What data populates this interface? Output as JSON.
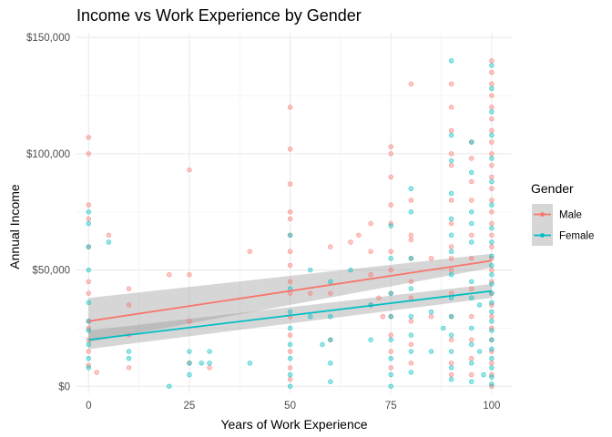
{
  "chart_data": {
    "type": "scatter",
    "title": "Income vs Work Experience by Gender",
    "xlabel": "Years of Work Experience",
    "ylabel": "Annual Income",
    "xlim": [
      -3,
      105
    ],
    "ylim": [
      -3000,
      152000
    ],
    "x_ticks": [
      0,
      25,
      50,
      75,
      100
    ],
    "x_tick_labels": [
      "0",
      "25",
      "50",
      "75",
      "100"
    ],
    "y_ticks": [
      0,
      50000,
      100000,
      150000
    ],
    "y_tick_labels": [
      "$0",
      "$50,000",
      "$100,000",
      "$150,000"
    ],
    "grid": true,
    "legend": {
      "title": "Gender",
      "position": "right"
    },
    "series": [
      {
        "name": "Male",
        "color": "#F8766D",
        "trend": {
          "x": [
            0,
            100
          ],
          "y": [
            28000,
            54000
          ],
          "ci_low": [
            19000,
            51000
          ],
          "ci_high": [
            38000,
            57000
          ]
        },
        "points": [
          [
            0,
            107000
          ],
          [
            0,
            100000
          ],
          [
            0,
            78000
          ],
          [
            0,
            72000
          ],
          [
            0,
            60000
          ],
          [
            0,
            45000
          ],
          [
            0,
            40000
          ],
          [
            0,
            28000
          ],
          [
            0,
            25000
          ],
          [
            0,
            20000
          ],
          [
            0,
            15000
          ],
          [
            0,
            9000
          ],
          [
            2,
            6000
          ],
          [
            5,
            65000
          ],
          [
            10,
            42000
          ],
          [
            10,
            35000
          ],
          [
            10,
            22000
          ],
          [
            10,
            8000
          ],
          [
            20,
            48000
          ],
          [
            25,
            93000
          ],
          [
            25,
            48000
          ],
          [
            25,
            28000
          ],
          [
            25,
            10000
          ],
          [
            30,
            8000
          ],
          [
            40,
            58000
          ],
          [
            50,
            120000
          ],
          [
            50,
            102000
          ],
          [
            50,
            87000
          ],
          [
            50,
            75000
          ],
          [
            50,
            72000
          ],
          [
            50,
            65000
          ],
          [
            50,
            58000
          ],
          [
            50,
            52000
          ],
          [
            50,
            45000
          ],
          [
            50,
            40000
          ],
          [
            50,
            30000
          ],
          [
            50,
            22000
          ],
          [
            50,
            15000
          ],
          [
            50,
            8000
          ],
          [
            50,
            3000
          ],
          [
            55,
            40000
          ],
          [
            60,
            60000
          ],
          [
            60,
            40000
          ],
          [
            60,
            20000
          ],
          [
            65,
            62000
          ],
          [
            67,
            65000
          ],
          [
            70,
            70000
          ],
          [
            70,
            58000
          ],
          [
            70,
            48000
          ],
          [
            70,
            35000
          ],
          [
            72,
            38000
          ],
          [
            73,
            30000
          ],
          [
            75,
            103000
          ],
          [
            75,
            100000
          ],
          [
            75,
            90000
          ],
          [
            75,
            78000
          ],
          [
            75,
            70000
          ],
          [
            75,
            58000
          ],
          [
            75,
            50000
          ],
          [
            75,
            40000
          ],
          [
            75,
            30000
          ],
          [
            75,
            22000
          ],
          [
            75,
            15000
          ],
          [
            75,
            8000
          ],
          [
            80,
            130000
          ],
          [
            80,
            80000
          ],
          [
            80,
            65000
          ],
          [
            80,
            63000
          ],
          [
            80,
            55000
          ],
          [
            80,
            45000
          ],
          [
            80,
            38000
          ],
          [
            80,
            28000
          ],
          [
            80,
            18000
          ],
          [
            80,
            10000
          ],
          [
            85,
            55000
          ],
          [
            85,
            30000
          ],
          [
            90,
            130000
          ],
          [
            90,
            120000
          ],
          [
            90,
            110000
          ],
          [
            90,
            100000
          ],
          [
            90,
            95000
          ],
          [
            90,
            80000
          ],
          [
            90,
            70000
          ],
          [
            90,
            60000
          ],
          [
            90,
            55000
          ],
          [
            90,
            50000
          ],
          [
            90,
            40000
          ],
          [
            90,
            30000
          ],
          [
            90,
            20000
          ],
          [
            90,
            10000
          ],
          [
            90,
            5000
          ],
          [
            95,
            105000
          ],
          [
            95,
            98000
          ],
          [
            95,
            88000
          ],
          [
            95,
            80000
          ],
          [
            95,
            65000
          ],
          [
            95,
            55000
          ],
          [
            95,
            42000
          ],
          [
            95,
            30000
          ],
          [
            95,
            20000
          ],
          [
            95,
            12000
          ],
          [
            95,
            5000
          ],
          [
            100,
            140000
          ],
          [
            100,
            135000
          ],
          [
            100,
            130000
          ],
          [
            100,
            125000
          ],
          [
            100,
            120000
          ],
          [
            100,
            115000
          ],
          [
            100,
            110000
          ],
          [
            100,
            105000
          ],
          [
            100,
            100000
          ],
          [
            100,
            95000
          ],
          [
            100,
            90000
          ],
          [
            100,
            85000
          ],
          [
            100,
            80000
          ],
          [
            100,
            75000
          ],
          [
            100,
            70000
          ],
          [
            100,
            65000
          ],
          [
            100,
            60000
          ],
          [
            100,
            55000
          ],
          [
            100,
            50000
          ],
          [
            100,
            45000
          ],
          [
            100,
            40000
          ],
          [
            100,
            35000
          ],
          [
            100,
            30000
          ],
          [
            100,
            25000
          ],
          [
            100,
            20000
          ],
          [
            100,
            15000
          ],
          [
            100,
            10000
          ],
          [
            100,
            5000
          ],
          [
            100,
            0
          ]
        ]
      },
      {
        "name": "Female",
        "color": "#00BFC4",
        "trend": {
          "x": [
            0,
            100
          ],
          "y": [
            20000,
            41000
          ],
          "ci_low": [
            16000,
            38000
          ],
          "ci_high": [
            24000,
            44000
          ]
        },
        "points": [
          [
            0,
            75000
          ],
          [
            0,
            70000
          ],
          [
            0,
            60000
          ],
          [
            0,
            50000
          ],
          [
            0,
            36000
          ],
          [
            0,
            28000
          ],
          [
            0,
            24000
          ],
          [
            0,
            18000
          ],
          [
            0,
            12000
          ],
          [
            0,
            8000
          ],
          [
            5,
            62000
          ],
          [
            10,
            15000
          ],
          [
            10,
            12000
          ],
          [
            20,
            0
          ],
          [
            25,
            15000
          ],
          [
            25,
            10000
          ],
          [
            25,
            5000
          ],
          [
            28,
            10000
          ],
          [
            30,
            15000
          ],
          [
            30,
            10000
          ],
          [
            40,
            10000
          ],
          [
            50,
            65000
          ],
          [
            50,
            42000
          ],
          [
            50,
            32000
          ],
          [
            50,
            25000
          ],
          [
            50,
            18000
          ],
          [
            50,
            12000
          ],
          [
            50,
            5000
          ],
          [
            50,
            0
          ],
          [
            55,
            50000
          ],
          [
            55,
            30000
          ],
          [
            58,
            18000
          ],
          [
            60,
            45000
          ],
          [
            60,
            30000
          ],
          [
            60,
            20000
          ],
          [
            60,
            10000
          ],
          [
            60,
            2000
          ],
          [
            65,
            50000
          ],
          [
            70,
            35000
          ],
          [
            70,
            20000
          ],
          [
            75,
            69000
          ],
          [
            75,
            55000
          ],
          [
            75,
            40000
          ],
          [
            75,
            30000
          ],
          [
            75,
            20000
          ],
          [
            75,
            12000
          ],
          [
            75,
            5000
          ],
          [
            75,
            0
          ],
          [
            80,
            85000
          ],
          [
            80,
            75000
          ],
          [
            80,
            55000
          ],
          [
            80,
            42000
          ],
          [
            80,
            30000
          ],
          [
            80,
            22000
          ],
          [
            80,
            15000
          ],
          [
            80,
            6000
          ],
          [
            85,
            32000
          ],
          [
            85,
            15000
          ],
          [
            88,
            25000
          ],
          [
            90,
            140000
          ],
          [
            90,
            108000
          ],
          [
            90,
            97000
          ],
          [
            90,
            83000
          ],
          [
            90,
            72000
          ],
          [
            90,
            65000
          ],
          [
            90,
            58000
          ],
          [
            90,
            48000
          ],
          [
            90,
            38000
          ],
          [
            90,
            30000
          ],
          [
            90,
            22000
          ],
          [
            90,
            15000
          ],
          [
            90,
            8000
          ],
          [
            90,
            3000
          ],
          [
            95,
            105000
          ],
          [
            95,
            92000
          ],
          [
            95,
            75000
          ],
          [
            95,
            70000
          ],
          [
            95,
            62000
          ],
          [
            95,
            45000
          ],
          [
            95,
            38000
          ],
          [
            95,
            25000
          ],
          [
            95,
            18000
          ],
          [
            95,
            10000
          ],
          [
            95,
            2000
          ],
          [
            97,
            35000
          ],
          [
            97,
            15000
          ],
          [
            98,
            5000
          ],
          [
            100,
            138000
          ],
          [
            100,
            128000
          ],
          [
            100,
            118000
          ],
          [
            100,
            108000
          ],
          [
            100,
            98000
          ],
          [
            100,
            88000
          ],
          [
            100,
            78000
          ],
          [
            100,
            68000
          ],
          [
            100,
            62000
          ],
          [
            100,
            56000
          ],
          [
            100,
            52000
          ],
          [
            100,
            48000
          ],
          [
            100,
            44000
          ],
          [
            100,
            40000
          ],
          [
            100,
            36000
          ],
          [
            100,
            32000
          ],
          [
            100,
            28000
          ],
          [
            100,
            24000
          ],
          [
            100,
            20000
          ],
          [
            100,
            16000
          ],
          [
            100,
            12000
          ],
          [
            100,
            8000
          ],
          [
            100,
            4000
          ],
          [
            100,
            1000
          ]
        ]
      }
    ]
  }
}
